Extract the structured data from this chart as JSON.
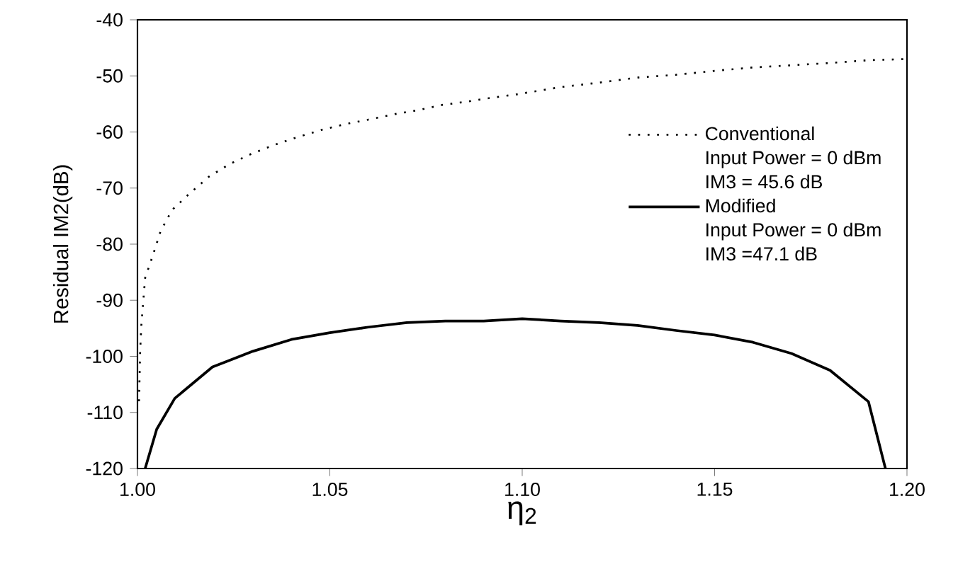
{
  "chart_data": {
    "type": "line",
    "xlabel": "η$_{2}$",
    "ylabel": "Residual IM2(dB)",
    "xlim": [
      1.0,
      1.2
    ],
    "xticks": [
      {
        "value": 1.0,
        "label": "1.00"
      },
      1.05,
      {
        "value": 1.1,
        "label": "1.10"
      },
      1.15,
      {
        "value": 1.2,
        "label": "1.20"
      }
    ],
    "ylim": [
      -120,
      -40
    ],
    "yticks": [
      -120,
      -110,
      -100,
      -90,
      -80,
      -70,
      -60,
      -50,
      -40
    ],
    "grid": false,
    "legend": "right",
    "marker": "none",
    "annotations": [
      "Input Power = 0 dBm",
      "IM3 = 45.6 dB",
      "Input Power = 0 dBm",
      "IM3 =47.1 dB"
    ],
    "series": [
      {
        "name": "Conventional",
        "color": "#000000",
        "line_style": "dotted",
        "x": [
          1.0004,
          1.0007,
          1.001,
          1.002,
          1.004,
          1.006,
          1.009,
          1.0135,
          1.0185,
          1.024,
          1.0296,
          1.0356,
          1.0417,
          1.048,
          1.054,
          1.06,
          1.067,
          1.073,
          1.079,
          1.0855,
          1.092,
          1.0985,
          1.11,
          1.12,
          1.13,
          1.14,
          1.15,
          1.16,
          1.17,
          1.18,
          1.19,
          1.2
        ],
        "values": [
          -108,
          -99.1,
          -94.5,
          -86,
          -82,
          -77.7,
          -73.9,
          -71,
          -68,
          -65.7,
          -63.9,
          -62.3,
          -60.9,
          -59.6,
          -58.6,
          -57.8,
          -56.8,
          -56.1,
          -55.2,
          -54.6,
          -53.9,
          -53.3,
          -52,
          -51.2,
          -50.3,
          -49.8,
          -49.1,
          -48.5,
          -48.1,
          -47.7,
          -47.2,
          -47
        ]
      },
      {
        "name": "Modified",
        "color": "#000000",
        "line_style": "solid",
        "x": [
          1.002,
          1.005,
          1.0097,
          1.0195,
          1.03,
          1.04,
          1.05,
          1.06,
          1.07,
          1.08,
          1.09,
          1.1,
          1.11,
          1.12,
          1.13,
          1.14,
          1.15,
          1.16,
          1.17,
          1.18,
          1.19,
          1.1944
        ],
        "values": [
          -120,
          -113,
          -107.5,
          -101.9,
          -99.1,
          -97,
          -95.8,
          -94.8,
          -94,
          -93.7,
          -93.7,
          -93.3,
          -93.7,
          -94,
          -94.5,
          -95.4,
          -96.2,
          -97.5,
          -99.5,
          -102.5,
          -108.1,
          -120
        ]
      }
    ]
  }
}
